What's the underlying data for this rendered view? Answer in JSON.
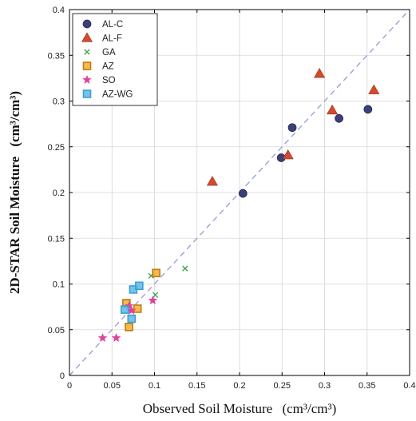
{
  "chart_data": {
    "type": "scatter",
    "title": "",
    "xlabel": "Observed Soil Moisture",
    "xlabel_unit": "(cm³/cm³)",
    "ylabel": "2D-STAR Soil Moisture",
    "ylabel_unit": "(cm³/cm³)",
    "xlim": [
      0,
      0.4
    ],
    "ylim": [
      0,
      0.4
    ],
    "xticks": [
      "0",
      "0.05",
      "0.1",
      "0.15",
      "0.2",
      "0.25",
      "0.3",
      "0.35",
      "0.4"
    ],
    "yticks": [
      "0",
      "0.05",
      "0.1",
      "0.15",
      "0.2",
      "0.25",
      "0.3",
      "0.35",
      "0.4"
    ],
    "tick_values": [
      0,
      0.05,
      0.1,
      0.15,
      0.2,
      0.25,
      0.3,
      0.35,
      0.4
    ],
    "grid": true,
    "legend_position": "top-left",
    "reference_line": {
      "style": "dashed",
      "color": "#9a9ad0",
      "from": [
        0,
        0
      ],
      "to": [
        0.4,
        0.4
      ]
    },
    "series": [
      {
        "name": "AL-C",
        "marker": "circle",
        "color": "#3c3f78",
        "points": [
          [
            0.204,
            0.199
          ],
          [
            0.249,
            0.238
          ],
          [
            0.262,
            0.271
          ],
          [
            0.317,
            0.281
          ],
          [
            0.351,
            0.291
          ]
        ]
      },
      {
        "name": "AL-F",
        "marker": "triangle",
        "color": "#d34a2c",
        "points": [
          [
            0.168,
            0.212
          ],
          [
            0.257,
            0.241
          ],
          [
            0.294,
            0.33
          ],
          [
            0.309,
            0.29
          ],
          [
            0.358,
            0.312
          ]
        ]
      },
      {
        "name": "GA",
        "marker": "x",
        "color": "#44a354",
        "points": [
          [
            0.096,
            0.109
          ],
          [
            0.101,
            0.088
          ],
          [
            0.136,
            0.117
          ]
        ]
      },
      {
        "name": "AZ",
        "marker": "square",
        "color": "#f2a31e",
        "points": [
          [
            0.067,
            0.079
          ],
          [
            0.07,
            0.053
          ],
          [
            0.08,
            0.073
          ],
          [
            0.102,
            0.112
          ]
        ]
      },
      {
        "name": "SO",
        "marker": "star",
        "color": "#e0449a",
        "points": [
          [
            0.039,
            0.041
          ],
          [
            0.055,
            0.041
          ],
          [
            0.07,
            0.076
          ],
          [
            0.073,
            0.071
          ],
          [
            0.098,
            0.082
          ]
        ]
      },
      {
        "name": "AZ-WG",
        "marker": "square",
        "color": "#5cb9ea",
        "points": [
          [
            0.065,
            0.072
          ],
          [
            0.073,
            0.062
          ],
          [
            0.075,
            0.094
          ],
          [
            0.082,
            0.098
          ]
        ]
      }
    ]
  }
}
